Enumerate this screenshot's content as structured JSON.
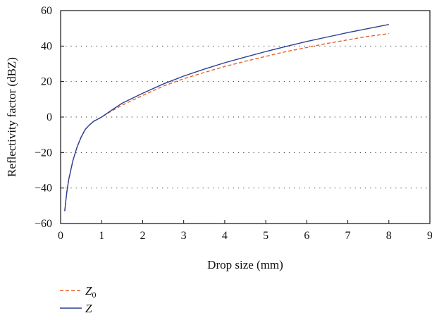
{
  "chart_data": {
    "type": "line",
    "title": "",
    "xlabel": "Drop size (mm)",
    "ylabel": "Reflectivity factor (dBZ)",
    "xlim": [
      0,
      9
    ],
    "ylim": [
      -60,
      60
    ],
    "xticks": [
      "0",
      "1",
      "2",
      "3",
      "4",
      "5",
      "6",
      "7",
      "8",
      "9"
    ],
    "yticks": [
      "60",
      "40",
      "20",
      "0",
      "−20",
      "−40",
      "−60"
    ],
    "grid": "horizontal dotted",
    "legend_position": "bottom-left",
    "series": [
      {
        "name": "Z0",
        "name_main": "Z",
        "name_sub": "0",
        "color": "#e8622a",
        "dash": "dashed",
        "points": [
          [
            0.1,
            -53
          ],
          [
            0.15,
            -42.5
          ],
          [
            0.2,
            -35
          ],
          [
            0.3,
            -24.5
          ],
          [
            0.4,
            -17
          ],
          [
            0.5,
            -11.3
          ],
          [
            0.6,
            -7
          ],
          [
            0.7,
            -4.5
          ],
          [
            0.8,
            -2.5
          ],
          [
            1.0,
            0
          ],
          [
            1.2,
            2.8
          ],
          [
            1.5,
            6.7
          ],
          [
            2.0,
            12.2
          ],
          [
            2.5,
            17.4
          ],
          [
            3.0,
            21.6
          ],
          [
            3.5,
            25.1
          ],
          [
            4.0,
            28.5
          ],
          [
            4.5,
            31.4
          ],
          [
            5.0,
            34.2
          ],
          [
            5.5,
            36.9
          ],
          [
            6.0,
            39.2
          ],
          [
            6.5,
            41.5
          ],
          [
            7.0,
            43.5
          ],
          [
            7.5,
            45.5
          ],
          [
            8.0,
            47
          ]
        ]
      },
      {
        "name": "Z",
        "name_main": "Z",
        "name_sub": "",
        "color": "#2b3f94",
        "dash": "solid",
        "points": [
          [
            0.1,
            -53
          ],
          [
            0.15,
            -42.5
          ],
          [
            0.2,
            -35
          ],
          [
            0.3,
            -24.5
          ],
          [
            0.4,
            -17
          ],
          [
            0.5,
            -11.3
          ],
          [
            0.6,
            -7
          ],
          [
            0.7,
            -4.5
          ],
          [
            0.8,
            -2.5
          ],
          [
            1.0,
            0
          ],
          [
            1.2,
            3.2
          ],
          [
            1.5,
            7.8
          ],
          [
            2.0,
            13.4
          ],
          [
            2.5,
            18.6
          ],
          [
            3.0,
            23.1
          ],
          [
            3.5,
            27
          ],
          [
            4.0,
            30.6
          ],
          [
            4.5,
            33.8
          ],
          [
            5.0,
            36.9
          ],
          [
            5.5,
            39.8
          ],
          [
            6.0,
            42.6
          ],
          [
            6.5,
            45.1
          ],
          [
            7.0,
            47.6
          ],
          [
            7.5,
            49.9
          ],
          [
            8.0,
            52.2
          ]
        ]
      }
    ]
  }
}
